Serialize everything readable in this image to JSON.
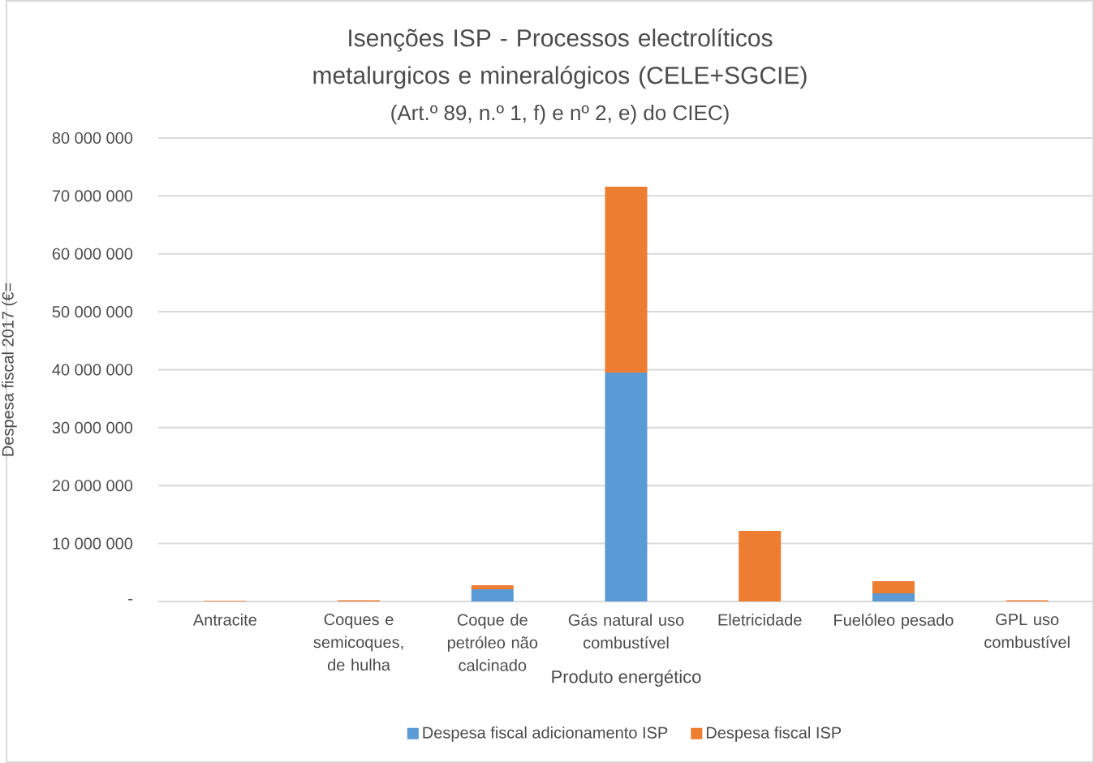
{
  "chart_data": {
    "type": "bar",
    "title": "Isenções ISP  - Processos electrolíticos metalurgicos e mineralógicos (CELE+SGCIE)",
    "subtitle": "(Art.º 89, n.º 1, f) e nº 2, e) do CIEC)",
    "xlabel": "Produto energético",
    "ylabel": "Despesa fiscal 2017 (€=",
    "categories": [
      "Antracite",
      "Coques e semicoques, de hulha",
      "Coque de petróleo não calcinado",
      "Gás natural uso combustível",
      "Eletricidade",
      "Fuelóleo pesado",
      "GPL uso combustível"
    ],
    "series": [
      {
        "name": "Despesa fiscal adicionamento ISP",
        "color": "#5b9bd5",
        "values": [
          0,
          0,
          2100000,
          39500000,
          0,
          1400000,
          0
        ]
      },
      {
        "name": "Despesa fiscal ISP",
        "color": "#ed7d31",
        "values": [
          100000,
          200000,
          700000,
          32100000,
          12200000,
          2100000,
          200000
        ]
      }
    ],
    "stacked": true,
    "ylim": [
      0,
      80000000
    ],
    "yticks": [
      {
        "value": 0,
        "label": "-"
      },
      {
        "value": 10000000,
        "label": "10 000 000"
      },
      {
        "value": 20000000,
        "label": "20 000 000"
      },
      {
        "value": 30000000,
        "label": "30 000 000"
      },
      {
        "value": 40000000,
        "label": "40 000 000"
      },
      {
        "value": 50000000,
        "label": "50 000 000"
      },
      {
        "value": 60000000,
        "label": "60 000 000"
      },
      {
        "value": 70000000,
        "label": "70 000 000"
      },
      {
        "value": 80000000,
        "label": "80 000 000"
      }
    ],
    "grid": "y",
    "legend": "bottom"
  }
}
